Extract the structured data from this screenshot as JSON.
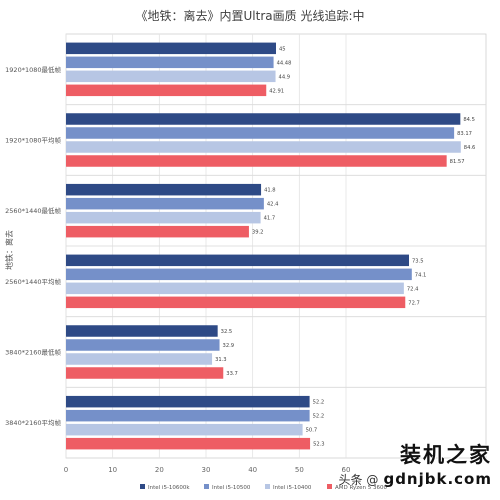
{
  "chart_data": {
    "type": "bar",
    "orientation": "horizontal",
    "title": "《地铁：离去》内置Ultra画质 光线追踪:中",
    "ylabel": "地铁：离去",
    "xlim": [
      0,
      90
    ],
    "x_ticks": [
      0,
      10,
      20,
      30,
      40,
      50,
      60
    ],
    "categories": [
      "1920*1080最低帧",
      "1920*1080平均帧",
      "2560*1440最低帧",
      "2560*1440平均帧",
      "3840*2160最低帧",
      "3840*2160平均帧"
    ],
    "series": [
      {
        "name": "Intel i5-10600k",
        "color": "#2e4a86",
        "values": [
          45,
          84.5,
          41.8,
          73.5,
          32.5,
          52.2
        ],
        "labels": [
          "45",
          "84.5",
          "41.8",
          "73.5",
          "32.5",
          "52.2"
        ]
      },
      {
        "name": "Intel i5-10500",
        "color": "#7590c9",
        "values": [
          44.48,
          83.17,
          42.4,
          74.1,
          32.9,
          52.2
        ],
        "labels": [
          "44.48",
          "83.17",
          "42.4",
          "74.1",
          "32.9",
          "52.2"
        ]
      },
      {
        "name": "Intel i5-10400",
        "color": "#b7c6e4",
        "values": [
          44.9,
          84.6,
          41.7,
          72.4,
          31.3,
          50.7
        ],
        "labels": [
          "44.9",
          "84.6",
          "41.7",
          "72.4",
          "31.3",
          "50.7"
        ]
      },
      {
        "name": "AMD Ryzen 5 3600",
        "color": "#ee5d64",
        "values": [
          42.91,
          81.57,
          39.2,
          72.7,
          33.7,
          52.3
        ],
        "labels": [
          "42.91",
          "81.57",
          "39.2",
          "72.7",
          "33.7",
          "52.3"
        ]
      }
    ],
    "grid": true,
    "legend_position": "bottom"
  },
  "watermark": {
    "logo_text": "装机之家",
    "sub_text": "头条 @",
    "url_text": "gdnjbk.com"
  }
}
